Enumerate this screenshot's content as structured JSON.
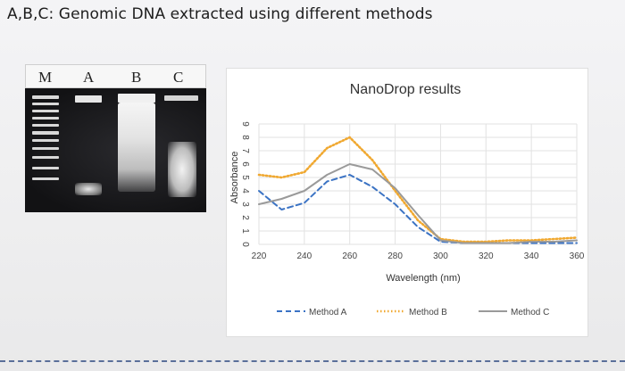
{
  "page": {
    "heading": "A,B,C: Genomic DNA extracted using different methods"
  },
  "gel": {
    "lane_labels": [
      "M",
      "A",
      "B",
      "C"
    ]
  },
  "chart_data": {
    "type": "line",
    "title": "NanoDrop results",
    "xlabel": "Wavelength (nm)",
    "ylabel": "Absorbance",
    "xlim": [
      220,
      360
    ],
    "ylim": [
      0,
      9
    ],
    "x_ticks": [
      "220",
      "240",
      "260",
      "280",
      "300",
      "320",
      "340",
      "360"
    ],
    "y_ticks": [
      "0",
      "1",
      "2",
      "3",
      "4",
      "5",
      "6",
      "7",
      "8",
      "9"
    ],
    "grid": true,
    "legend_position": "bottom",
    "series": [
      {
        "name": "Method A",
        "color": "#3b73c4",
        "style": "dashed",
        "x": [
          220,
          230,
          240,
          250,
          260,
          270,
          280,
          290,
          300,
          310,
          320,
          330,
          340,
          350,
          360
        ],
        "y": [
          4.0,
          2.6,
          3.1,
          4.7,
          5.2,
          4.3,
          3.0,
          1.3,
          0.2,
          0.1,
          0.1,
          0.1,
          0.1,
          0.1,
          0.1
        ]
      },
      {
        "name": "Method B",
        "color": "#f0a830",
        "style": "dotted",
        "x": [
          220,
          230,
          240,
          250,
          260,
          270,
          280,
          290,
          300,
          310,
          320,
          330,
          340,
          350,
          360
        ],
        "y": [
          5.2,
          5.0,
          5.4,
          7.2,
          8.0,
          6.3,
          4.0,
          1.8,
          0.4,
          0.2,
          0.2,
          0.3,
          0.3,
          0.4,
          0.5
        ]
      },
      {
        "name": "Method C",
        "color": "#9a9a9a",
        "style": "solid",
        "x": [
          220,
          230,
          240,
          250,
          260,
          270,
          280,
          290,
          300,
          310,
          320,
          330,
          340,
          350,
          360
        ],
        "y": [
          3.0,
          3.4,
          4.0,
          5.2,
          6.0,
          5.6,
          4.2,
          2.2,
          0.3,
          0.1,
          0.1,
          0.1,
          0.2,
          0.2,
          0.3
        ]
      }
    ]
  }
}
